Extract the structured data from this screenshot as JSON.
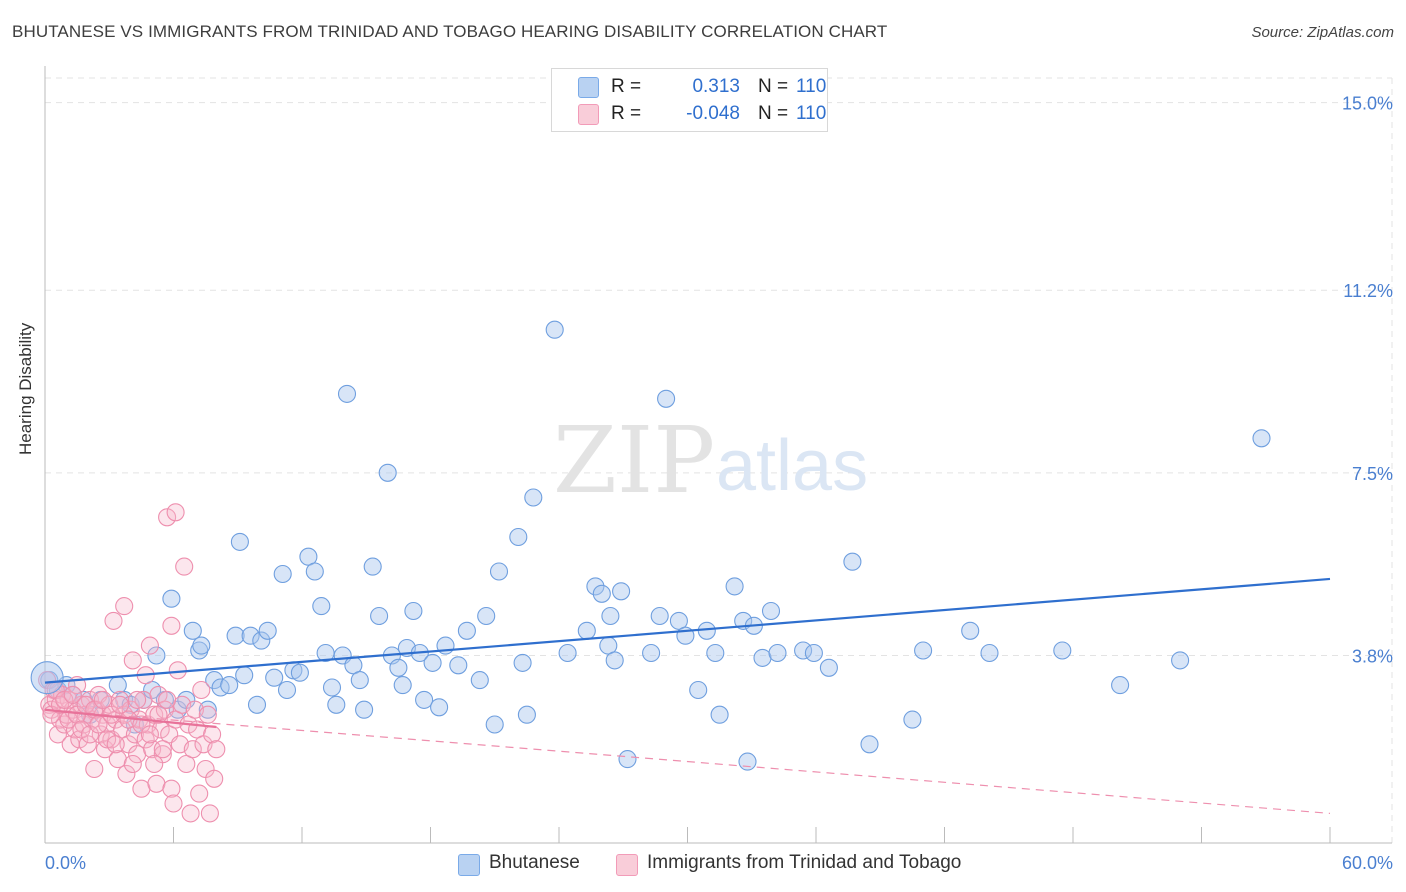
{
  "title": "BHUTANESE VS IMMIGRANTS FROM TRINIDAD AND TOBAGO HEARING DISABILITY CORRELATION CHART",
  "source": "Source: ZipAtlas.com",
  "watermark": {
    "zip": "ZIP",
    "atlas": "atlas"
  },
  "legend_top": [
    {
      "r_label": "R =",
      "r_value": "0.313",
      "n_label": "N =",
      "n_value": "110",
      "color": "#7aaae8"
    },
    {
      "r_label": "R =",
      "r_value": "-0.048",
      "n_label": "N =",
      "n_value": "110",
      "color": "#f29bb8"
    }
  ],
  "colors": {
    "blue": "#2f6fce",
    "blue_fill": "#a9c6ee",
    "pink": "#e8739a",
    "pink_fill": "#f6b8cc",
    "grid": "#e3e3e3",
    "tick_text": "#4a7fd0"
  },
  "chart_data": {
    "type": "scatter",
    "title": "BHUTANESE VS IMMIGRANTS FROM TRINIDAD AND TOBAGO HEARING DISABILITY CORRELATION CHART",
    "xlabel": "",
    "ylabel": "Hearing Disability",
    "xlim": [
      0,
      60
    ],
    "ylim": [
      0,
      15.5
    ],
    "x_tick_labels": [
      "0.0%",
      "60.0%"
    ],
    "y_ticks": [
      3.8,
      7.5,
      11.2,
      15.0
    ],
    "y_tick_labels": [
      "3.8%",
      "7.5%",
      "11.2%",
      "15.0%"
    ],
    "grid": true,
    "legend_position": "bottom",
    "series": [
      {
        "name": "Bhutanese",
        "color": "#2f6fce",
        "trend": {
          "x": [
            0,
            60
          ],
          "y": [
            3.25,
            5.35
          ]
        },
        "points": [
          [
            0.2,
            3.3
          ],
          [
            0.6,
            3.1
          ],
          [
            1.0,
            3.2
          ],
          [
            1.3,
            3.0
          ],
          [
            1.8,
            2.9
          ],
          [
            2.1,
            2.6
          ],
          [
            2.6,
            2.9
          ],
          [
            3.4,
            3.2
          ],
          [
            3.7,
            2.9
          ],
          [
            4.0,
            2.8
          ],
          [
            4.2,
            2.4
          ],
          [
            4.6,
            2.9
          ],
          [
            5.0,
            3.1
          ],
          [
            5.2,
            3.8
          ],
          [
            5.6,
            2.9
          ],
          [
            5.9,
            4.95
          ],
          [
            6.2,
            2.7
          ],
          [
            6.6,
            2.9
          ],
          [
            6.9,
            4.3
          ],
          [
            7.2,
            3.9
          ],
          [
            7.3,
            4.0
          ],
          [
            7.6,
            2.7
          ],
          [
            7.9,
            3.3
          ],
          [
            8.2,
            3.15
          ],
          [
            8.6,
            3.2
          ],
          [
            8.9,
            4.2
          ],
          [
            9.1,
            6.1
          ],
          [
            9.3,
            3.4
          ],
          [
            9.6,
            4.2
          ],
          [
            9.9,
            2.8
          ],
          [
            10.1,
            4.1
          ],
          [
            10.4,
            4.3
          ],
          [
            10.7,
            3.35
          ],
          [
            11.1,
            5.45
          ],
          [
            11.3,
            3.1
          ],
          [
            11.6,
            3.5
          ],
          [
            11.9,
            3.45
          ],
          [
            12.3,
            5.8
          ],
          [
            12.6,
            5.5
          ],
          [
            12.9,
            4.8
          ],
          [
            13.1,
            3.85
          ],
          [
            13.4,
            3.15
          ],
          [
            13.6,
            2.8
          ],
          [
            13.9,
            3.8
          ],
          [
            14.1,
            9.1
          ],
          [
            14.4,
            3.6
          ],
          [
            14.7,
            3.3
          ],
          [
            14.9,
            2.7
          ],
          [
            15.3,
            5.6
          ],
          [
            15.6,
            4.6
          ],
          [
            16.0,
            7.5
          ],
          [
            16.2,
            3.8
          ],
          [
            16.5,
            3.55
          ],
          [
            16.7,
            3.2
          ],
          [
            16.9,
            3.95
          ],
          [
            17.2,
            4.7
          ],
          [
            17.5,
            3.85
          ],
          [
            17.7,
            2.9
          ],
          [
            18.1,
            3.65
          ],
          [
            18.4,
            2.75
          ],
          [
            18.7,
            4.0
          ],
          [
            19.3,
            3.6
          ],
          [
            19.7,
            4.3
          ],
          [
            20.3,
            3.3
          ],
          [
            20.6,
            4.6
          ],
          [
            21.0,
            2.4
          ],
          [
            21.2,
            5.5
          ],
          [
            22.1,
            6.2
          ],
          [
            22.3,
            3.65
          ],
          [
            22.5,
            2.6
          ],
          [
            22.8,
            7.0
          ],
          [
            23.8,
            10.4
          ],
          [
            24.4,
            3.85
          ],
          [
            25.3,
            4.3
          ],
          [
            25.7,
            5.2
          ],
          [
            26.0,
            5.05
          ],
          [
            26.3,
            4.0
          ],
          [
            26.4,
            4.6
          ],
          [
            26.6,
            3.7
          ],
          [
            26.9,
            5.1
          ],
          [
            27.2,
            1.7
          ],
          [
            28.3,
            3.85
          ],
          [
            28.7,
            4.6
          ],
          [
            29.0,
            9.0
          ],
          [
            29.6,
            4.5
          ],
          [
            29.9,
            4.2
          ],
          [
            30.5,
            3.1
          ],
          [
            30.9,
            4.3
          ],
          [
            31.3,
            3.85
          ],
          [
            31.5,
            2.6
          ],
          [
            32.2,
            5.2
          ],
          [
            32.6,
            4.5
          ],
          [
            32.8,
            1.65
          ],
          [
            33.1,
            4.4
          ],
          [
            33.5,
            3.75
          ],
          [
            33.9,
            4.7
          ],
          [
            34.2,
            3.85
          ],
          [
            35.4,
            3.9
          ],
          [
            35.9,
            3.85
          ],
          [
            36.6,
            3.55
          ],
          [
            37.7,
            5.7
          ],
          [
            38.5,
            2.0
          ],
          [
            40.5,
            2.5
          ],
          [
            41.0,
            3.9
          ],
          [
            43.2,
            4.3
          ],
          [
            44.1,
            3.85
          ],
          [
            47.5,
            3.9
          ],
          [
            50.2,
            3.2
          ],
          [
            53.0,
            3.7
          ],
          [
            56.8,
            8.2
          ]
        ]
      },
      {
        "name": "Immigrants from Trinidad and Tobago",
        "color": "#e8739a",
        "trend": {
          "x": [
            0,
            8
          ],
          "y": [
            2.7,
            2.35
          ]
        },
        "trend_extended": {
          "x": [
            0,
            60
          ],
          "y": [
            2.7,
            0.6
          ]
        },
        "points": [
          [
            0.1,
            3.3
          ],
          [
            0.2,
            2.8
          ],
          [
            0.3,
            2.7
          ],
          [
            0.4,
            3.1
          ],
          [
            0.5,
            2.9
          ],
          [
            0.6,
            2.2
          ],
          [
            0.7,
            2.5
          ],
          [
            0.8,
            3.0
          ],
          [
            0.9,
            2.4
          ],
          [
            1.0,
            2.6
          ],
          [
            1.1,
            2.9
          ],
          [
            1.2,
            2.0
          ],
          [
            1.3,
            2.7
          ],
          [
            1.4,
            2.3
          ],
          [
            1.5,
            3.2
          ],
          [
            1.6,
            2.1
          ],
          [
            1.7,
            2.8
          ],
          [
            1.8,
            2.4
          ],
          [
            1.9,
            2.6
          ],
          [
            2.0,
            2.0
          ],
          [
            2.1,
            2.9
          ],
          [
            2.2,
            2.5
          ],
          [
            2.3,
            1.5
          ],
          [
            2.4,
            2.7
          ],
          [
            2.5,
            3.0
          ],
          [
            2.6,
            2.2
          ],
          [
            2.7,
            2.6
          ],
          [
            2.8,
            1.9
          ],
          [
            2.9,
            2.4
          ],
          [
            3.0,
            2.8
          ],
          [
            3.1,
            2.1
          ],
          [
            3.2,
            4.5
          ],
          [
            3.3,
            2.5
          ],
          [
            3.4,
            1.7
          ],
          [
            3.5,
            2.9
          ],
          [
            3.6,
            2.3
          ],
          [
            3.7,
            2.6
          ],
          [
            3.8,
            1.4
          ],
          [
            3.9,
            2.0
          ],
          [
            4.0,
            2.7
          ],
          [
            4.1,
            3.7
          ],
          [
            4.2,
            2.2
          ],
          [
            4.3,
            1.8
          ],
          [
            4.4,
            2.5
          ],
          [
            4.5,
            1.1
          ],
          [
            4.6,
            2.9
          ],
          [
            4.7,
            2.1
          ],
          [
            4.8,
            2.4
          ],
          [
            4.9,
            4.0
          ],
          [
            5.0,
            1.9
          ],
          [
            5.1,
            2.6
          ],
          [
            5.2,
            1.2
          ],
          [
            5.3,
            3.0
          ],
          [
            5.4,
            2.3
          ],
          [
            5.5,
            1.8
          ],
          [
            5.6,
            2.7
          ],
          [
            5.7,
            6.6
          ],
          [
            5.8,
            2.2
          ],
          [
            5.9,
            1.1
          ],
          [
            6.0,
            0.8
          ],
          [
            6.1,
            2.5
          ],
          [
            6.2,
            3.5
          ],
          [
            6.3,
            2.0
          ],
          [
            6.4,
            2.8
          ],
          [
            6.5,
            5.6
          ],
          [
            6.6,
            1.6
          ],
          [
            6.7,
            2.4
          ],
          [
            6.8,
            0.6
          ],
          [
            6.9,
            1.9
          ],
          [
            7.0,
            2.7
          ],
          [
            7.1,
            2.3
          ],
          [
            7.2,
            1.0
          ],
          [
            7.3,
            3.1
          ],
          [
            7.4,
            2.0
          ],
          [
            7.5,
            1.5
          ],
          [
            7.6,
            2.6
          ],
          [
            7.7,
            0.6
          ],
          [
            7.8,
            2.2
          ],
          [
            7.9,
            1.3
          ],
          [
            8.0,
            1.9
          ],
          [
            0.3,
            2.6
          ],
          [
            0.5,
            3.1
          ],
          [
            0.7,
            2.8
          ],
          [
            0.9,
            2.9
          ],
          [
            1.1,
            2.5
          ],
          [
            1.3,
            3.0
          ],
          [
            1.5,
            2.6
          ],
          [
            1.7,
            2.3
          ],
          [
            1.9,
            2.8
          ],
          [
            2.1,
            2.2
          ],
          [
            2.3,
            2.7
          ],
          [
            2.5,
            2.4
          ],
          [
            2.7,
            2.9
          ],
          [
            2.9,
            2.1
          ],
          [
            3.1,
            2.6
          ],
          [
            3.3,
            2.0
          ],
          [
            3.5,
            2.8
          ],
          [
            3.7,
            4.8
          ],
          [
            3.9,
            2.5
          ],
          [
            4.1,
            1.6
          ],
          [
            4.3,
            2.9
          ],
          [
            4.5,
            2.4
          ],
          [
            4.7,
            3.4
          ],
          [
            4.9,
            2.2
          ],
          [
            5.1,
            1.6
          ],
          [
            5.3,
            2.6
          ],
          [
            5.5,
            1.9
          ],
          [
            5.7,
            2.9
          ],
          [
            5.9,
            4.4
          ],
          [
            6.1,
            6.7
          ]
        ]
      }
    ]
  },
  "bottom_legend": [
    {
      "label": "Bhutanese",
      "color": "#a9c6ee"
    },
    {
      "label": "Immigrants from Trinidad and Tobago",
      "color": "#f6b8cc"
    }
  ]
}
